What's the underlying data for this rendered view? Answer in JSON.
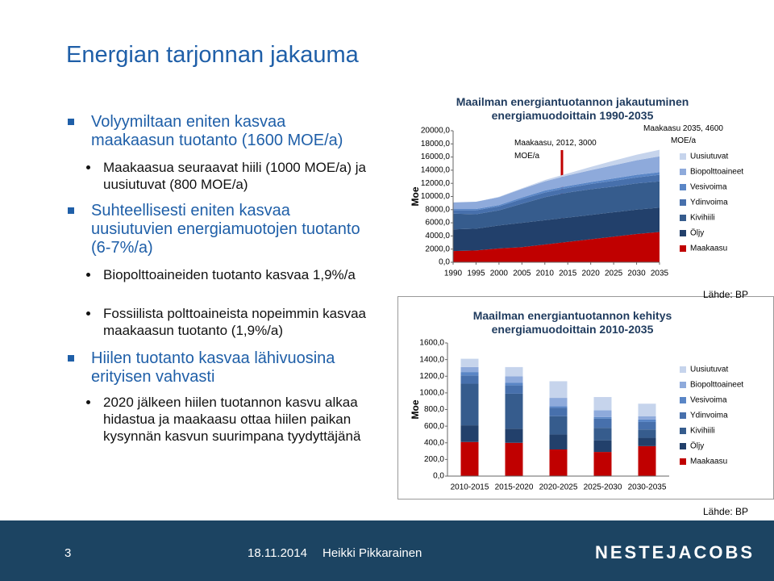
{
  "title": "Energian tarjonnan jakauma",
  "bullets": [
    {
      "level": 1,
      "text": "Volyymiltaan eniten kasvaa maakaasun tuotanto (1600 MOE/a)"
    },
    {
      "level": 2,
      "text": "Maakaasua seuraavat hiili (1000 MOE/a) ja uusiutuvat (800 MOE/a)"
    },
    {
      "level": 1,
      "text": "Suhteellisesti eniten kasvaa uusiutuvien energiamuotojen tuotanto (6-7%/a)"
    },
    {
      "level": 2,
      "text": "Biopolttoaineiden tuotanto kasvaa 1,9%/a"
    },
    {
      "level": 2,
      "text": "Fossiilista polttoaineista nopeimmin kasvaa maakaasun tuotanto (1,9%/a)"
    },
    {
      "level": 1,
      "text": "Hiilen tuotanto kasvaa lähivuosina erityisen vahvasti"
    },
    {
      "level": 2,
      "text": "2020 jälkeen hiilen tuotannon kasvu alkaa hidastua ja maakaasu ottaa hiilen paikan kysynnän kasvun suurimpana tyydyttäjänä"
    }
  ],
  "footer": {
    "page": "3",
    "date": "18.11.2014",
    "author": "Heikki Pikkarainen",
    "logo": "NESTEJACOBS"
  },
  "chart_data": [
    {
      "type": "area",
      "title": "Maailman energiantuotannon jakautuminen energiamuodoittain 1990-2035",
      "y_label": "Moe",
      "source": "Lähde: BP",
      "annotations": [
        "Maakaasu, 2012, 3000 MOE/a",
        "Maakaasu 2035, 4600 MOE/a"
      ],
      "x": [
        1990,
        1995,
        2000,
        2005,
        2010,
        2015,
        2020,
        2025,
        2030,
        2035
      ],
      "xlim": [
        1990,
        2035
      ],
      "xticks": [
        1990,
        1995,
        2000,
        2005,
        2010,
        2015,
        2020,
        2025,
        2030,
        2035
      ],
      "ylim": [
        0,
        20000
      ],
      "yticks": [
        {
          "value": 0,
          "label": "0,0"
        },
        {
          "value": 2000,
          "label": "2000,0"
        },
        {
          "value": 4000,
          "label": "4000,0"
        },
        {
          "value": 6000,
          "label": "6000,0"
        },
        {
          "value": 8000,
          "label": "8000,0"
        },
        {
          "value": 10000,
          "label": "10000,0"
        },
        {
          "value": 12000,
          "label": "12000,0"
        },
        {
          "value": 14000,
          "label": "14000,0"
        },
        {
          "value": 16000,
          "label": "16000,0"
        },
        {
          "value": 18000,
          "label": "18000,0"
        },
        {
          "value": 20000,
          "label": "20000,0"
        }
      ],
      "series": [
        {
          "name": "Maakaasu",
          "color": "#c00000",
          "values": [
            1700,
            1800,
            2100,
            2300,
            2700,
            3100,
            3500,
            3900,
            4300,
            4600
          ]
        },
        {
          "name": "Öljy",
          "color": "#22406b",
          "values": [
            3300,
            3300,
            3500,
            3700,
            3700,
            3700,
            3700,
            3700,
            3700,
            3700
          ]
        },
        {
          "name": "Kivihiili",
          "color": "#365c8d",
          "values": [
            2400,
            2200,
            2300,
            2900,
            3500,
            3800,
            3900,
            3900,
            4000,
            4000
          ]
        },
        {
          "name": "Ydinvoima",
          "color": "#4770ac",
          "values": [
            500,
            600,
            600,
            700,
            700,
            700,
            800,
            900,
            900,
            1000
          ]
        },
        {
          "name": "Vesivoima",
          "color": "#5a86c6",
          "values": [
            200,
            200,
            200,
            250,
            300,
            300,
            300,
            350,
            400,
            400
          ]
        },
        {
          "name": "Biopolttoaineet",
          "color": "#8eaadb",
          "values": [
            1000,
            1100,
            1200,
            1300,
            1400,
            1600,
            1800,
            2000,
            2200,
            2400
          ]
        },
        {
          "name": "Uusiutuvat",
          "color": "#c6d4ec",
          "values": [
            0,
            0,
            50,
            100,
            200,
            300,
            500,
            700,
            850,
            1000
          ]
        }
      ]
    },
    {
      "type": "stacked_bar",
      "title": "Maailman energiantuotannon kehitys energiamuodoittain 2010-2035",
      "y_label": "Moe",
      "source": "Lähde: BP",
      "categories": [
        "2010-2015",
        "2015-2020",
        "2020-2025",
        "2025-2030",
        "2030-2035"
      ],
      "ylim": [
        0,
        1600
      ],
      "yticks": [
        {
          "value": 0,
          "label": "0,0"
        },
        {
          "value": 200,
          "label": "200,0"
        },
        {
          "value": 400,
          "label": "400,0"
        },
        {
          "value": 600,
          "label": "600,0"
        },
        {
          "value": 800,
          "label": "800,0"
        },
        {
          "value": 1000,
          "label": "1000,0"
        },
        {
          "value": 1200,
          "label": "1200,0"
        },
        {
          "value": 1400,
          "label": "1400,0"
        },
        {
          "value": 1600,
          "label": "1600,0"
        }
      ],
      "series": [
        {
          "name": "Maakaasu",
          "color": "#c00000",
          "values": [
            410,
            400,
            320,
            290,
            360
          ]
        },
        {
          "name": "Öljy",
          "color": "#22406b",
          "values": [
            200,
            170,
            180,
            140,
            100
          ]
        },
        {
          "name": "Kivihiili",
          "color": "#365c8d",
          "values": [
            500,
            420,
            220,
            150,
            100
          ]
        },
        {
          "name": "Ydinvoima",
          "color": "#4770ac",
          "values": [
            100,
            100,
            100,
            110,
            90
          ]
        },
        {
          "name": "Vesivoima",
          "color": "#5a86c6",
          "values": [
            40,
            30,
            20,
            20,
            30
          ]
        },
        {
          "name": "Biopolttoaineet",
          "color": "#8eaadb",
          "values": [
            60,
            80,
            100,
            80,
            40
          ]
        },
        {
          "name": "Uusiutuvat",
          "color": "#c6d4ec",
          "values": [
            100,
            110,
            200,
            160,
            150
          ]
        }
      ]
    }
  ]
}
